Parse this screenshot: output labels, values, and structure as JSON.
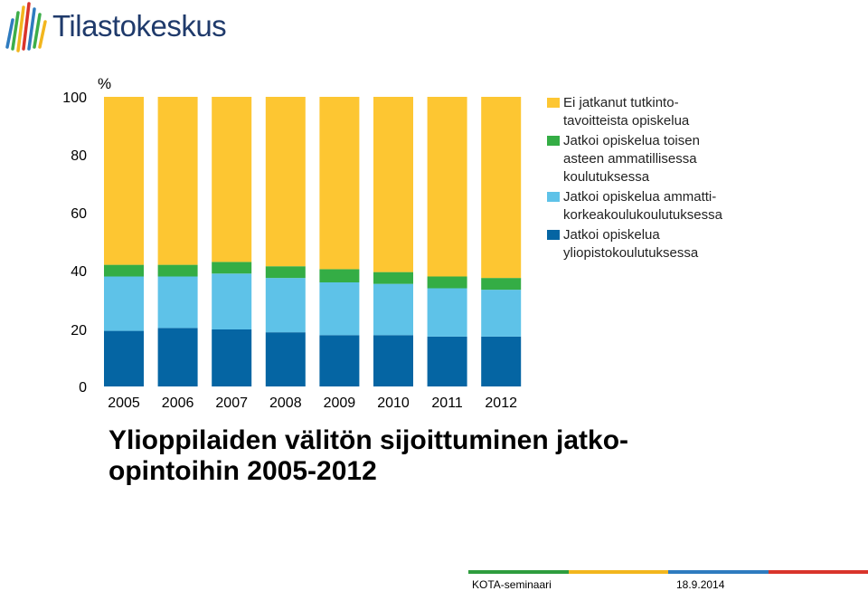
{
  "header": {
    "brand_name": "Tilastokeskus",
    "logo_colors": [
      "#2e7bbf",
      "#3cae49",
      "#f2b61e",
      "#d9342b"
    ],
    "brand_color": "#1f3a6b"
  },
  "chart_data": {
    "type": "bar",
    "stacked": true,
    "title": "Ylioppilaiden välitön sijoittuminen jatko-\nopintoihin 2005-2012",
    "ylabel": "%",
    "xlabel": "",
    "ylim": [
      0,
      100
    ],
    "yticks": [
      0,
      20,
      40,
      60,
      80,
      100
    ],
    "categories": [
      "2005",
      "2006",
      "2007",
      "2008",
      "2009",
      "2010",
      "2011",
      "2012"
    ],
    "legend_position": "right",
    "series": [
      {
        "name": "Jatkoi opiskelua\nyliopistokoulutuksessa",
        "color": "#0565a3",
        "values": [
          19.5,
          20.5,
          20.0,
          19.0,
          18.0,
          18.0,
          17.5,
          17.5
        ]
      },
      {
        "name": "Jatkoi opiskelua ammatti-\nkorkeakoulukoulutuksessa",
        "color": "#5ec2e8",
        "values": [
          18.5,
          17.5,
          19.0,
          18.5,
          18.0,
          17.5,
          16.5,
          16.0
        ]
      },
      {
        "name": "Jatkoi opiskelua toisen\n asteen ammatillisessa\nkoulutuksessa",
        "color": "#34ad45",
        "values": [
          4.0,
          4.0,
          4.0,
          4.0,
          4.5,
          4.0,
          4.0,
          4.0
        ]
      },
      {
        "name": "Ei jatkanut tutkinto-\ntavoitteista opiskelua",
        "color": "#fdc632",
        "values": [
          58.0,
          58.0,
          57.0,
          58.5,
          59.5,
          60.5,
          62.0,
          62.5
        ]
      }
    ],
    "legend_order": [
      3,
      2,
      1,
      0
    ]
  },
  "footer": {
    "event": "KOTA-seminaari",
    "date": "18.9.2014",
    "bar_colors": [
      "#2e9d3e",
      "#f2b61e",
      "#2e7bbf",
      "#d9342b"
    ]
  }
}
